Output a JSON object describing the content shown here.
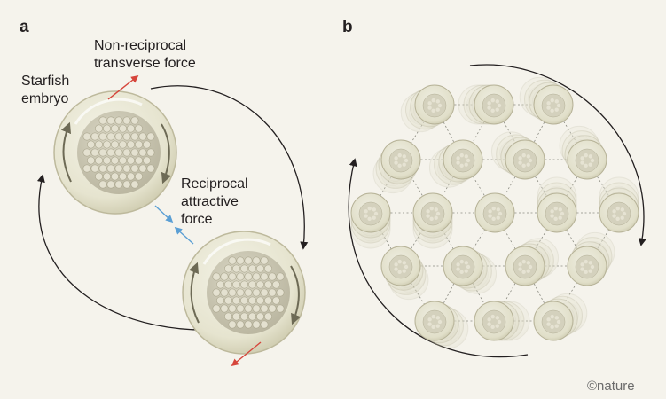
{
  "panel_a": {
    "letter": "a",
    "embryo_label": [
      "Starfish",
      "embryo"
    ],
    "transverse_label": [
      "Non-reciprocal",
      "transverse force"
    ],
    "attractive_label": [
      "Reciprocal",
      "attractive",
      "force"
    ]
  },
  "panel_b": {
    "letter": "b"
  },
  "credit": "©nature",
  "colors": {
    "background": "#f5f3ec",
    "transverse_arrow": "#d6453b",
    "attractive_arrow": "#5b9fd4",
    "rotation_arrow": "#231f20",
    "lattice_line": "#8a8a80"
  }
}
